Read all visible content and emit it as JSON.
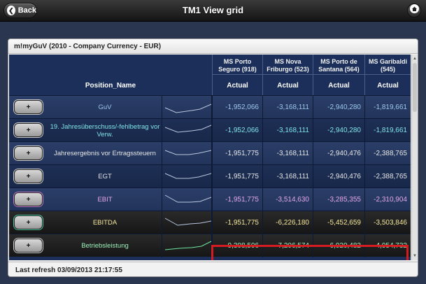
{
  "header": {
    "title": "TM1 View grid",
    "back_label": "Back",
    "back_icon": "chevron-left-icon",
    "home_icon": "home-icon"
  },
  "panel": {
    "title": "m!myGuV (2010 - Company Currency - EUR)"
  },
  "grid": {
    "position_header": "Position_Name",
    "columns": [
      {
        "name": "MS Porto Seguro (918)",
        "measure": "Actual"
      },
      {
        "name": "MS Nova Friburgo (523)",
        "measure": "Actual"
      },
      {
        "name": "MS Porto de Santana (564)",
        "measure": "Actual"
      },
      {
        "name": "MS Garibaldi (545)",
        "measure": "Actual"
      }
    ],
    "rows": [
      {
        "button": "+",
        "name": "GuV",
        "values": [
          "-1,952,066",
          "-3,168,111",
          "-2,940,280",
          "-1,819,661"
        ]
      },
      {
        "button": "+",
        "name": "19. Jahresüberschuss/-fehlbetrag vor Verw.",
        "values": [
          "-1,952,066",
          "-3,168,111",
          "-2,940,280",
          "-1,819,661"
        ]
      },
      {
        "button": "+",
        "name": "Jahresergebnis vor Ertragssteuern",
        "values": [
          "-1,951,775",
          "-3,168,111",
          "-2,940,476",
          "-2,388,765"
        ]
      },
      {
        "button": "+",
        "name": "EGT",
        "values": [
          "-1,951,775",
          "-3,168,111",
          "-2,940,476",
          "-2,388,765"
        ]
      },
      {
        "button": "+",
        "name": "EBIT",
        "values": [
          "-1,951,775",
          "-3,514,630",
          "-3,285,355",
          "-2,310,904"
        ]
      },
      {
        "button": "+",
        "name": "EBITDA",
        "values": [
          "-1,951,775",
          "-6,226,180",
          "-5,452,659",
          "-3,503,846"
        ]
      },
      {
        "button": "+",
        "name": "Betriebsleistung",
        "values": [
          "-9,308,506",
          "-7,206,574",
          "-6,920,482",
          "-4,954,732"
        ]
      }
    ]
  },
  "footer": {
    "last_refresh": "Last refresh 03/09/2013 21:17:55"
  },
  "colors": {
    "highlight": "#d41c22",
    "grid_background": "#1b2f5a"
  }
}
